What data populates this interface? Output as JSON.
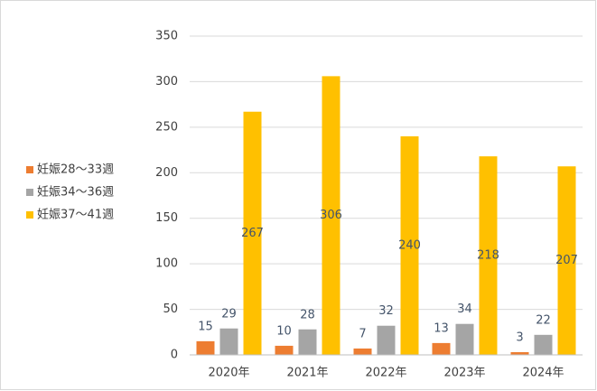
{
  "chart_data": {
    "type": "bar",
    "categories": [
      "2020年",
      "2021年",
      "2022年",
      "2023年",
      "2024年"
    ],
    "series": [
      {
        "name": "妊娠28～33週",
        "color": "#ed7d31",
        "values": [
          15,
          10,
          7,
          13,
          3
        ]
      },
      {
        "name": "妊娠34～36週",
        "color": "#a5a5a5",
        "values": [
          29,
          28,
          32,
          34,
          22
        ]
      },
      {
        "name": "妊娠37～41週",
        "color": "#ffc000",
        "values": [
          267,
          306,
          240,
          218,
          207
        ]
      }
    ],
    "ylim": [
      0,
      350
    ],
    "yticks": [
      0,
      50,
      100,
      150,
      200,
      250,
      300,
      350
    ],
    "grid": true,
    "legend": "left"
  }
}
